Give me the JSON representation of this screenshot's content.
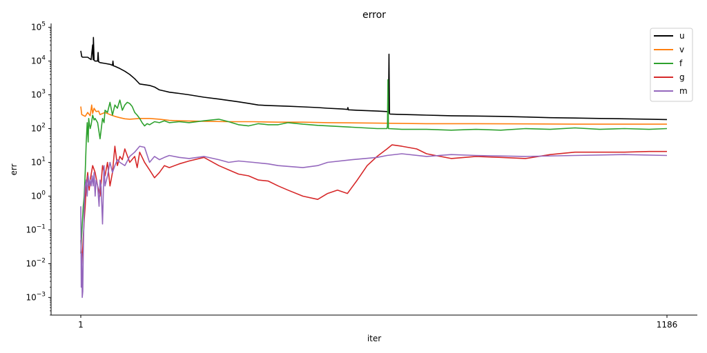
{
  "chart_data": {
    "type": "line",
    "title": "error",
    "xlabel": "iter",
    "ylabel": "err",
    "yscale": "log",
    "xlim": [
      1,
      1186
    ],
    "ylim": [
      0.0003,
      130000
    ],
    "xticks": [
      {
        "value": 1,
        "label": "1"
      },
      {
        "value": 1186,
        "label": "1186"
      }
    ],
    "yticks": [
      {
        "exp": -3,
        "base": "10",
        "sup": "−3"
      },
      {
        "exp": -2,
        "base": "10",
        "sup": "−2"
      },
      {
        "exp": -1,
        "base": "10",
        "sup": "−1"
      },
      {
        "exp": 0,
        "base": "10",
        "sup": "0"
      },
      {
        "exp": 1,
        "base": "10",
        "sup": "1"
      },
      {
        "exp": 2,
        "base": "10",
        "sup": "2"
      },
      {
        "exp": 3,
        "base": "10",
        "sup": "3"
      },
      {
        "exp": 4,
        "base": "10",
        "sup": "4"
      },
      {
        "exp": 5,
        "base": "10",
        "sup": "5"
      }
    ],
    "grid": false,
    "legend_position": "top-right",
    "series": [
      {
        "name": "u",
        "color": "#000000",
        "x": [
          1,
          3,
          5,
          15,
          22,
          25,
          26,
          26.5,
          28,
          30,
          35,
          36,
          37,
          40,
          50,
          60,
          65,
          66,
          67,
          70,
          80,
          90,
          100,
          110,
          115,
          120,
          140,
          150,
          160,
          170,
          180,
          200,
          220,
          250,
          280,
          300,
          320,
          340,
          360,
          380,
          400,
          420,
          450,
          480,
          500,
          530,
          540,
          541,
          542,
          560,
          600,
          620,
          623,
          624,
          625,
          626,
          640,
          660,
          680,
          700,
          750,
          800,
          850,
          900,
          950,
          1000,
          1050,
          1100,
          1150,
          1186
        ],
        "y": [
          20000,
          13500,
          13000,
          13000,
          11000,
          30000,
          11000,
          50000,
          10500,
          10000,
          10000,
          18000,
          9500,
          9000,
          8500,
          8000,
          7500,
          10000,
          7200,
          7000,
          6000,
          5000,
          4000,
          3000,
          2500,
          2100,
          1900,
          1700,
          1400,
          1300,
          1200,
          1100,
          1000,
          850,
          750,
          680,
          620,
          560,
          500,
          480,
          470,
          460,
          440,
          420,
          400,
          380,
          370,
          420,
          360,
          350,
          330,
          320,
          300,
          16000,
          280,
          270,
          265,
          260,
          255,
          250,
          240,
          235,
          230,
          220,
          210,
          205,
          200,
          195,
          190,
          185
        ]
      },
      {
        "name": "v",
        "color": "#ff7f0e",
        "x": [
          1,
          3,
          5,
          10,
          15,
          20,
          23,
          25,
          28,
          32,
          37,
          40,
          45,
          50,
          60,
          70,
          80,
          90,
          100,
          120,
          140,
          160,
          180,
          200,
          250,
          300,
          350,
          400,
          450,
          500,
          600,
          700,
          800,
          900,
          1000,
          1100,
          1186
        ],
        "y": [
          450,
          260,
          250,
          230,
          300,
          240,
          500,
          280,
          400,
          320,
          330,
          260,
          280,
          300,
          260,
          230,
          210,
          195,
          190,
          200,
          200,
          190,
          175,
          170,
          165,
          160,
          160,
          155,
          155,
          150,
          145,
          140,
          140,
          138,
          135,
          135,
          135
        ]
      },
      {
        "name": "f",
        "color": "#2ca02c",
        "x": [
          1,
          4,
          6,
          8,
          10,
          12,
          14,
          16,
          17,
          18,
          20,
          22,
          25,
          28,
          30,
          35,
          40,
          45,
          48,
          50,
          55,
          60,
          65,
          70,
          75,
          80,
          85,
          90,
          95,
          100,
          105,
          110,
          115,
          120,
          125,
          130,
          135,
          140,
          150,
          160,
          170,
          180,
          200,
          220,
          250,
          280,
          300,
          320,
          340,
          360,
          380,
          400,
          420,
          450,
          480,
          500,
          550,
          600,
          620,
          621,
          622,
          623,
          650,
          700,
          750,
          800,
          850,
          900,
          950,
          1000,
          1050,
          1100,
          1150,
          1186
        ],
        "y": [
          0.02,
          0.15,
          0.5,
          1,
          5,
          40,
          150,
          40,
          200,
          150,
          100,
          130,
          250,
          180,
          200,
          150,
          50,
          200,
          150,
          350,
          300,
          600,
          250,
          500,
          400,
          700,
          350,
          500,
          600,
          550,
          450,
          300,
          250,
          200,
          150,
          120,
          140,
          130,
          160,
          150,
          170,
          150,
          160,
          150,
          170,
          190,
          160,
          130,
          120,
          140,
          130,
          130,
          150,
          135,
          125,
          120,
          110,
          100,
          100,
          120,
          2800,
          100,
          95,
          95,
          90,
          95,
          90,
          100,
          95,
          105,
          95,
          100,
          95,
          100
        ]
      },
      {
        "name": "g",
        "color": "#d62728",
        "x": [
          1,
          3,
          5,
          8,
          10,
          12,
          15,
          18,
          20,
          25,
          30,
          35,
          40,
          45,
          50,
          55,
          60,
          65,
          70,
          75,
          80,
          85,
          90,
          100,
          110,
          115,
          120,
          130,
          140,
          150,
          160,
          170,
          180,
          200,
          220,
          250,
          280,
          300,
          320,
          340,
          360,
          380,
          400,
          420,
          450,
          480,
          500,
          520,
          540,
          560,
          580,
          600,
          620,
          630,
          650,
          680,
          700,
          750,
          800,
          850,
          900,
          950,
          1000,
          1050,
          1100,
          1150,
          1186
        ],
        "y": [
          0.05,
          0.01,
          0.03,
          0.2,
          0.5,
          2,
          5,
          1.5,
          3,
          8,
          5,
          2,
          1,
          8,
          4,
          10,
          2,
          5,
          30,
          8,
          15,
          12,
          25,
          10,
          15,
          7,
          20,
          10,
          6,
          3.5,
          5,
          8,
          7,
          9,
          11,
          14,
          8,
          6,
          4.5,
          4,
          3,
          2.8,
          2,
          1.5,
          1,
          0.8,
          1.2,
          1.5,
          1.2,
          3,
          8,
          15,
          25,
          33,
          30,
          25,
          18,
          13,
          15,
          14,
          13,
          17,
          20,
          20,
          20,
          21,
          21
        ]
      },
      {
        "name": "m",
        "color": "#9467bd",
        "x": [
          1,
          2,
          3,
          4,
          5,
          6,
          8,
          10,
          12,
          14,
          16,
          18,
          20,
          22,
          24,
          26,
          28,
          30,
          32,
          35,
          38,
          40,
          42,
          45,
          48,
          50,
          55,
          60,
          65,
          70,
          75,
          80,
          90,
          100,
          110,
          120,
          130,
          140,
          150,
          160,
          170,
          180,
          200,
          220,
          250,
          280,
          300,
          320,
          350,
          380,
          400,
          450,
          480,
          500,
          550,
          600,
          620,
          650,
          700,
          750,
          800,
          900,
          1000,
          1100,
          1186
        ],
        "y": [
          0.5,
          0.002,
          0.02,
          0.001,
          0.0015,
          0.02,
          0.5,
          2,
          3,
          1,
          4,
          2,
          3,
          2,
          4,
          2,
          5,
          1,
          3,
          2,
          0.5,
          3,
          2,
          0.15,
          8,
          2,
          4,
          10,
          5,
          8,
          12,
          10,
          8,
          15,
          20,
          30,
          28,
          10,
          15,
          12,
          14,
          16,
          14,
          13,
          15,
          12,
          10,
          11,
          10,
          9,
          8,
          7,
          8,
          10,
          12,
          14,
          16,
          18,
          15,
          17,
          16,
          15,
          16,
          17,
          16
        ]
      }
    ]
  }
}
